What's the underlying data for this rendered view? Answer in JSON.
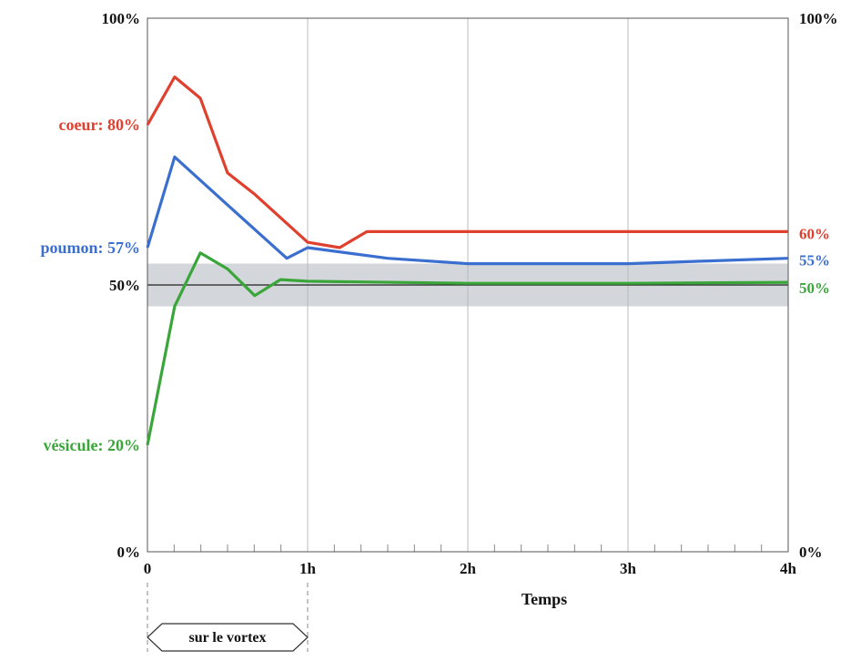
{
  "chart_data": {
    "type": "line",
    "xlabel": "Temps",
    "x_ticks": [
      "0",
      "1h",
      "2h",
      "3h",
      "4h"
    ],
    "x_range": [
      0,
      4
    ],
    "y_ticks": [
      "0%",
      "50%",
      "100%"
    ],
    "y_range": [
      0,
      100
    ],
    "y_right_ticks": [
      "0%",
      "100%"
    ],
    "band": {
      "y_from": 46,
      "y_to": 54,
      "color": "#d3d6da"
    },
    "reference_line": 50,
    "grid": {
      "vertical": true,
      "horizontal": false
    },
    "annotation": {
      "label": "sur le vortex",
      "x_from": 0,
      "x_to": 1
    },
    "series": [
      {
        "name": "coeur",
        "color": "#e0402e",
        "start_label": "coeur: 80%",
        "end_label": "60%",
        "x": [
          0,
          0.17,
          0.33,
          0.5,
          0.67,
          1.0,
          1.2,
          1.37,
          4.0
        ],
        "y": [
          80,
          89,
          85,
          71,
          67,
          58,
          57,
          60,
          60
        ]
      },
      {
        "name": "poumon",
        "color": "#3b6fcf",
        "start_label": "poumon: 57%",
        "end_label": "55%",
        "x": [
          0,
          0.17,
          0.5,
          0.87,
          1.0,
          1.5,
          2.0,
          2.5,
          3.0,
          3.5,
          4.0
        ],
        "y": [
          57,
          74,
          65,
          55,
          57,
          55,
          54,
          54,
          54,
          54.5,
          55
        ]
      },
      {
        "name": "vésicule",
        "color": "#3aa63a",
        "start_label": "vésicule: 20%",
        "end_label": "50%",
        "x": [
          0,
          0.17,
          0.33,
          0.5,
          0.67,
          0.83,
          1.0,
          2.0,
          3.0,
          4.0
        ],
        "y": [
          20,
          46,
          56,
          53,
          48,
          51,
          50.7,
          50.3,
          50.3,
          50.5
        ]
      }
    ]
  }
}
